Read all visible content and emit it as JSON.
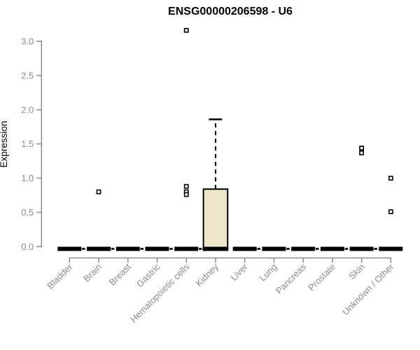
{
  "colors": {
    "background": "#ffffff",
    "title": "#000000",
    "axis": "#8c8c8c",
    "tick_label": "#8c8c8c",
    "box_stroke": "#000000",
    "box_fill": "#ece7cb",
    "collapsed_box": "#000000",
    "outlier_fill": "#ffffff",
    "outlier_stroke": "#000000"
  },
  "chart_data": {
    "type": "boxplot",
    "title": "ENSG00000206598 - U6",
    "xlabel": "",
    "ylabel": "Expression",
    "ylim": [
      0,
      3.0
    ],
    "yticks": [
      0.0,
      0.5,
      1.0,
      1.5,
      2.0,
      2.5,
      3.0
    ],
    "ytick_labels": [
      "0.0",
      "0.5",
      "1.0",
      "1.5",
      "2.0",
      "2.5",
      "3.0"
    ],
    "grid": false,
    "legend": "none",
    "outlier_marker": "open-square",
    "categories": [
      "Bladder",
      "Brain",
      "Breast",
      "Gastric",
      "Hematopoietic cells",
      "Kidney",
      "Liver",
      "Lung",
      "Pancreas",
      "Prostate",
      "Skin",
      "Unknown / Other"
    ],
    "boxes": [
      {
        "category": "Bladder",
        "whisker_low": 0.02,
        "q1": 0.02,
        "median": 0.02,
        "q3": 0.02,
        "whisker_high": 0.02,
        "outliers": []
      },
      {
        "category": "Brain",
        "whisker_low": 0.02,
        "q1": 0.02,
        "median": 0.02,
        "q3": 0.02,
        "whisker_high": 0.02,
        "outliers": [
          0.8
        ]
      },
      {
        "category": "Breast",
        "whisker_low": 0.02,
        "q1": 0.02,
        "median": 0.02,
        "q3": 0.02,
        "whisker_high": 0.02,
        "outliers": []
      },
      {
        "category": "Gastric",
        "whisker_low": 0.02,
        "q1": 0.02,
        "median": 0.02,
        "q3": 0.02,
        "whisker_high": 0.02,
        "outliers": []
      },
      {
        "category": "Hematopoietic cells",
        "whisker_low": 0.02,
        "q1": 0.02,
        "median": 0.02,
        "q3": 0.02,
        "whisker_high": 0.02,
        "outliers": [
          3.16,
          0.88,
          0.8,
          0.76
        ]
      },
      {
        "category": "Kidney",
        "whisker_low": 0.02,
        "q1": 0.02,
        "median": 0.02,
        "q3": 0.84,
        "whisker_high": 1.86,
        "outliers": []
      },
      {
        "category": "Liver",
        "whisker_low": 0.02,
        "q1": 0.02,
        "median": 0.02,
        "q3": 0.02,
        "whisker_high": 0.02,
        "outliers": []
      },
      {
        "category": "Lung",
        "whisker_low": 0.02,
        "q1": 0.02,
        "median": 0.02,
        "q3": 0.02,
        "whisker_high": 0.02,
        "outliers": []
      },
      {
        "category": "Pancreas",
        "whisker_low": 0.02,
        "q1": 0.02,
        "median": 0.02,
        "q3": 0.02,
        "whisker_high": 0.02,
        "outliers": []
      },
      {
        "category": "Prostate",
        "whisker_low": 0.02,
        "q1": 0.02,
        "median": 0.02,
        "q3": 0.02,
        "whisker_high": 0.02,
        "outliers": []
      },
      {
        "category": "Skin",
        "whisker_low": 0.02,
        "q1": 0.02,
        "median": 0.02,
        "q3": 0.02,
        "whisker_high": 0.02,
        "outliers": [
          1.44,
          1.37
        ]
      },
      {
        "category": "Unknown / Other",
        "whisker_low": 0.02,
        "q1": 0.02,
        "median": 0.02,
        "q3": 0.02,
        "whisker_high": 0.02,
        "outliers": [
          1.0,
          0.51
        ]
      }
    ]
  }
}
